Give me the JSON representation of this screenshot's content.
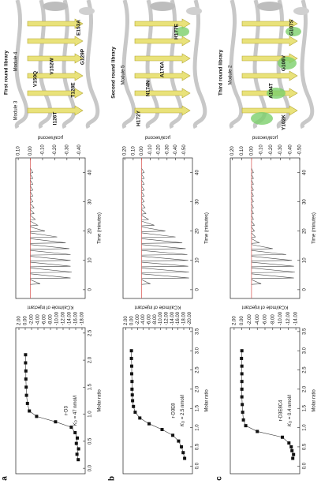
{
  "panels": [
    {
      "letter": "a",
      "structure": {
        "title": "First round library",
        "modules": [
          "Module 3",
          "Module 4"
        ],
        "mutations": [
          "I126T",
          "V150Q",
          "V152W",
          "T128E",
          "G129P",
          "E153A"
        ]
      },
      "raw": {
        "type": "spike",
        "x_label": "Time (minutes)",
        "y_label": "µcal/second",
        "color": "#444444",
        "baseline_color": "#d9534f",
        "x": [
          2,
          4,
          6,
          8,
          10,
          12,
          14,
          16,
          18,
          20,
          22,
          24,
          26,
          28,
          30,
          32,
          34,
          36,
          38,
          40
        ],
        "values": [
          -0.08,
          -0.33,
          -0.34,
          -0.33,
          -0.33,
          -0.33,
          -0.32,
          -0.29,
          -0.22,
          -0.12,
          -0.06,
          -0.04,
          -0.03,
          -0.03,
          -0.02,
          -0.02,
          -0.02,
          -0.02,
          -0.02,
          -0.02
        ],
        "xlim": [
          -3,
          45
        ],
        "xticks": [
          0,
          10,
          20,
          30,
          40
        ],
        "ylim": [
          -0.45,
          0.12
        ],
        "yticks": [
          {
            "value": 0.1,
            "label": "0.10"
          },
          {
            "value": 0,
            "label": "0.00"
          },
          {
            "value": -0.1,
            "label": "-0.10"
          },
          {
            "value": -0.2,
            "label": "-0.20"
          },
          {
            "value": -0.3,
            "label": "-0.30"
          },
          {
            "value": -0.4,
            "label": "-0.40"
          }
        ]
      },
      "isotherm": {
        "type": "scatter",
        "x_label": "Molar ratio",
        "y_label": "KCal/mole of injectant",
        "color": "#111111",
        "x": [
          0.16,
          0.26,
          0.36,
          0.46,
          0.56,
          0.66,
          0.76,
          0.86,
          0.96,
          1.06,
          1.2,
          1.35,
          1.5,
          1.65,
          1.8,
          1.95,
          2.1
        ],
        "values": [
          -16.8,
          -16.4,
          -16.9,
          -16.2,
          -16.5,
          -15.8,
          -14.6,
          -9.6,
          -3.6,
          -1.3,
          -0.7,
          -0.4,
          -0.3,
          -0.2,
          -0.2,
          -0.1,
          -0.1
        ],
        "xlim": [
          -0.1,
          2.6
        ],
        "xticks": [
          {
            "value": 0,
            "label": "0.0"
          },
          0.5,
          {
            "value": 1,
            "label": "1.0"
          },
          1.5,
          {
            "value": 2,
            "label": "2.0"
          },
          2.5
        ],
        "ylim": [
          -19,
          3
        ],
        "yticks": [
          {
            "value": 2,
            "label": "2.00"
          },
          {
            "value": 0,
            "label": "0.00"
          },
          {
            "value": -2,
            "label": "-2.00"
          },
          {
            "value": -4,
            "label": "-4.00"
          },
          {
            "value": -6,
            "label": "-6.00"
          },
          {
            "value": -8,
            "label": "-8.00"
          },
          {
            "value": -10,
            "label": "-10.00"
          },
          {
            "value": -12,
            "label": "-12.00"
          },
          {
            "value": -14,
            "label": "-14.00"
          },
          {
            "value": -16,
            "label": "-16.00"
          },
          {
            "value": -18,
            "label": "-18.00"
          }
        ]
      },
      "result": {
        "name": "r-D3",
        "kd_symbol": "K",
        "kd_subscript": "D",
        "kd_text": " = 47 nmol/l"
      }
    },
    {
      "letter": "b",
      "structure": {
        "title": "Second round library",
        "modules": [
          "Module 5"
        ],
        "mutations": [
          "H172Y",
          "N174N",
          "A176A",
          "H177E"
        ]
      },
      "raw": {
        "type": "spike",
        "x_label": "Time (minutes)",
        "y_label": "µcal/second",
        "color": "#444444",
        "baseline_color": "#d9534f",
        "x": [
          2,
          4,
          6,
          8,
          10,
          12,
          14,
          16,
          18,
          20,
          22,
          24,
          26,
          28,
          30,
          32,
          34,
          36,
          38,
          40
        ],
        "values": [
          -0.1,
          -0.56,
          -0.56,
          -0.55,
          -0.55,
          -0.54,
          -0.52,
          -0.48,
          -0.4,
          -0.28,
          -0.15,
          -0.08,
          -0.05,
          -0.04,
          -0.03,
          -0.03,
          -0.03,
          -0.03,
          -0.03,
          -0.03
        ],
        "xlim": [
          -3,
          45
        ],
        "xticks": [
          0,
          10,
          20,
          30,
          40
        ],
        "ylim": [
          -0.6,
          0.22
        ],
        "yticks": [
          {
            "value": 0.2,
            "label": "0.20"
          },
          {
            "value": 0.1,
            "label": "0.10"
          },
          {
            "value": 0,
            "label": "0.00"
          },
          {
            "value": -0.1,
            "label": "-0.10"
          },
          {
            "value": -0.2,
            "label": "-0.20"
          },
          {
            "value": -0.3,
            "label": "-0.30"
          },
          {
            "value": -0.4,
            "label": "-0.40"
          },
          {
            "value": -0.5,
            "label": "-0.50"
          }
        ]
      },
      "isotherm": {
        "type": "scatter",
        "x_label": "Molar ratio",
        "y_label": "KCal/mole of injectant",
        "color": "#111111",
        "x": [
          0.2,
          0.35,
          0.5,
          0.65,
          0.8,
          0.95,
          1.1,
          1.25,
          1.4,
          1.55,
          1.7,
          1.85,
          2.0,
          2.2,
          2.4,
          2.6,
          2.8,
          3.0
        ],
        "values": [
          -18.3,
          -17.8,
          -17.2,
          -16.2,
          -14.2,
          -10.5,
          -6.0,
          -2.8,
          -1.2,
          -0.6,
          -0.3,
          -0.2,
          -0.1,
          -0.1,
          0,
          0,
          0.1,
          0.1
        ],
        "xlim": [
          -0.2,
          3.6
        ],
        "xticks": [
          {
            "value": 0,
            "label": "0.0"
          },
          0.5,
          {
            "value": 1,
            "label": "1.0"
          },
          1.5,
          {
            "value": 2,
            "label": "2.0"
          },
          2.5,
          {
            "value": 3,
            "label": "3.0"
          },
          3.5
        ],
        "ylim": [
          -21,
          3
        ],
        "yticks": [
          {
            "value": 2,
            "label": "2.00"
          },
          {
            "value": 0,
            "label": "0.00"
          },
          {
            "value": -2,
            "label": "-2.00"
          },
          {
            "value": -4,
            "label": "-4.00"
          },
          {
            "value": -6,
            "label": "-6.00"
          },
          {
            "value": -8,
            "label": "-8.00"
          },
          {
            "value": -10,
            "label": "-10.00"
          },
          {
            "value": -12,
            "label": "-12.00"
          },
          {
            "value": -14,
            "label": "-14.00"
          },
          {
            "value": -16,
            "label": "-16.00"
          },
          {
            "value": -18,
            "label": "-18.00"
          },
          {
            "value": -20,
            "label": "-20.00"
          }
        ]
      },
      "result": {
        "name": "r-D3E8",
        "kd_symbol": "K",
        "kd_subscript": "D",
        "kd_text": " = 2.5 nmol/l"
      }
    },
    {
      "letter": "c",
      "structure": {
        "title": "Third round library",
        "modules": [
          "Module 2"
        ],
        "mutations": [
          "Y102K",
          "A104T",
          "G106V",
          "G107S"
        ]
      },
      "raw": {
        "type": "spike",
        "x_label": "Time (minutes)",
        "y_label": "µcal/second",
        "color": "#444444",
        "baseline_color": "#d9534f",
        "x": [
          2,
          4,
          6,
          8,
          10,
          12,
          14,
          16,
          18,
          20,
          22,
          24,
          26,
          28,
          30,
          32,
          34,
          36,
          38,
          40
        ],
        "values": [
          -0.1,
          -0.44,
          -0.45,
          -0.44,
          -0.42,
          -0.36,
          -0.22,
          -0.08,
          -0.04,
          -0.03,
          -0.03,
          -0.02,
          -0.02,
          -0.02,
          -0.02,
          -0.02,
          -0.02,
          -0.02,
          -0.02,
          -0.02
        ],
        "xlim": [
          -3,
          45
        ],
        "xticks": [
          0,
          10,
          20,
          30,
          40
        ],
        "ylim": [
          -0.5,
          0.22
        ],
        "yticks": [
          {
            "value": 0.2,
            "label": "0.20"
          },
          {
            "value": 0.1,
            "label": "0.10"
          },
          {
            "value": 0,
            "label": "0.00"
          },
          {
            "value": -0.1,
            "label": "-0.10"
          },
          {
            "value": -0.2,
            "label": "-0.20"
          },
          {
            "value": -0.3,
            "label": "-0.30"
          },
          {
            "value": -0.4,
            "label": "-0.40"
          },
          {
            "value": -0.5,
            "label": "-0.50"
          }
        ]
      },
      "isotherm": {
        "type": "scatter",
        "x_label": "Molar ratio",
        "y_label": "KCal/mole of injectant",
        "color": "#111111",
        "x": [
          0.2,
          0.3,
          0.4,
          0.5,
          0.6,
          0.75,
          0.9,
          1.05,
          1.2,
          1.4,
          1.6,
          1.8,
          2.0,
          2.2,
          2.4,
          2.6,
          2.8,
          3.0
        ],
        "values": [
          -13.2,
          -13.4,
          -13.0,
          -12.8,
          -12.2,
          -10.5,
          -4.0,
          -1.0,
          -0.4,
          -0.2,
          -0.1,
          0,
          0,
          0,
          0,
          0,
          0.1,
          0
        ],
        "xlim": [
          -0.2,
          3.6
        ],
        "xticks": [
          {
            "value": 0,
            "label": "0.0"
          },
          0.5,
          {
            "value": 1,
            "label": "1.0"
          },
          1.5,
          {
            "value": 2,
            "label": "2.0"
          },
          2.5,
          {
            "value": 3,
            "label": "3.0"
          },
          3.5
        ],
        "ylim": [
          -15,
          3
        ],
        "yticks": [
          {
            "value": 2,
            "label": "2.00"
          },
          {
            "value": 0,
            "label": "0.00"
          },
          {
            "value": -2,
            "label": "-2.00"
          },
          {
            "value": -4,
            "label": "-4.00"
          },
          {
            "value": -6,
            "label": "-6.00"
          },
          {
            "value": -8,
            "label": "-8.00"
          },
          {
            "value": -10,
            "label": "-10.00"
          },
          {
            "value": -12,
            "label": "-12.00"
          },
          {
            "value": -14,
            "label": "-14.00"
          }
        ]
      },
      "result": {
        "name": "r-D3E8C4",
        "kd_symbol": "K",
        "kd_subscript": "D",
        "kd_text": " = 0.4 nmol/l"
      }
    }
  ]
}
